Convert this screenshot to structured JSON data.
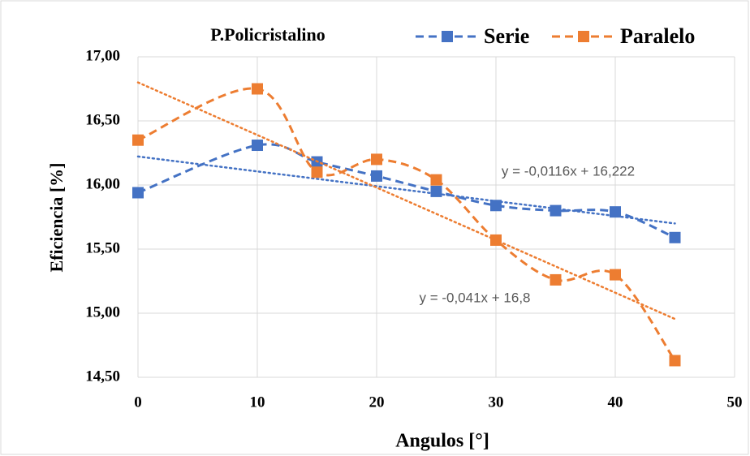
{
  "chart_data": {
    "type": "line",
    "title": "P.Policristalino",
    "xlabel": "Angulos [°]",
    "ylabel": "Eficiencia [%]",
    "x": [
      0,
      10,
      15,
      20,
      25,
      30,
      35,
      40,
      45
    ],
    "series": [
      {
        "name": "Serie",
        "color": "#4472c4",
        "values": [
          15.94,
          16.31,
          16.18,
          16.07,
          15.95,
          15.84,
          15.8,
          15.79,
          15.59
        ],
        "trendline": {
          "slope": -0.0116,
          "intercept": 16.222,
          "label": "y = -0,0116x + 16,222"
        }
      },
      {
        "name": "Paralelo",
        "color": "#ed7d31",
        "values": [
          16.35,
          16.75,
          16.1,
          16.2,
          16.04,
          15.57,
          15.26,
          15.3,
          14.63
        ],
        "trendline": {
          "slope": -0.041,
          "intercept": 16.8,
          "label": "y = -0,041x + 16,8"
        }
      }
    ],
    "xlim": [
      0,
      50
    ],
    "xticks": [
      0,
      10,
      20,
      30,
      40,
      50
    ],
    "ylim": [
      14.5,
      17
    ],
    "yticks": [
      {
        "value": 14.5,
        "label": "14,50"
      },
      {
        "value": 15,
        "label": "15,00"
      },
      {
        "value": 15.5,
        "label": "15,50"
      },
      {
        "value": 16,
        "label": "16,00"
      },
      {
        "value": 16.5,
        "label": "16,50"
      },
      {
        "value": 17,
        "label": "17,00"
      }
    ],
    "grid": true,
    "legend": "top-right"
  }
}
